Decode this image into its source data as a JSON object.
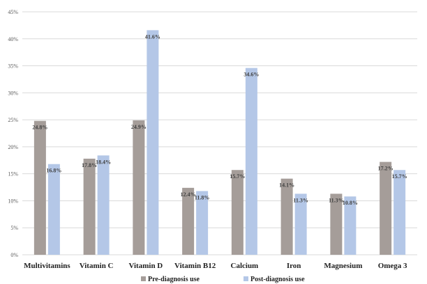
{
  "chart_data": {
    "type": "bar",
    "title": "",
    "xlabel": "",
    "ylabel": "",
    "ylim": [
      0,
      45
    ],
    "y_ticks": [
      "0%",
      "5%",
      "10%",
      "15%",
      "20%",
      "25%",
      "30%",
      "35%",
      "40%",
      "45%"
    ],
    "grid": "horizontal",
    "legend_position": "bottom",
    "categories": [
      "Multivitamins",
      "Vitamin C",
      "Vitamin D",
      "Vitamin B12",
      "Calcium",
      "Iron",
      "Magnesium",
      "Omega 3"
    ],
    "series": [
      {
        "name": "Pre-diagnosis use",
        "color": "#a59d99",
        "values": [
          24.8,
          17.8,
          24.9,
          12.4,
          15.7,
          14.1,
          11.3,
          17.2
        ],
        "labels": [
          "24.8%",
          "17.8%",
          "24.9%",
          "12.4%",
          "15.7%",
          "14.1%",
          "11.3%",
          "17.2%"
        ]
      },
      {
        "name": "Post-diagnosis use",
        "color": "#b4c7e7",
        "values": [
          16.8,
          18.4,
          41.6,
          11.8,
          34.6,
          11.3,
          10.8,
          15.7
        ],
        "labels": [
          "16.8%",
          "18.4%",
          "41.6%",
          "11.8%",
          "34.6%",
          "11.3%",
          "10.8%",
          "15.7%"
        ]
      }
    ]
  }
}
